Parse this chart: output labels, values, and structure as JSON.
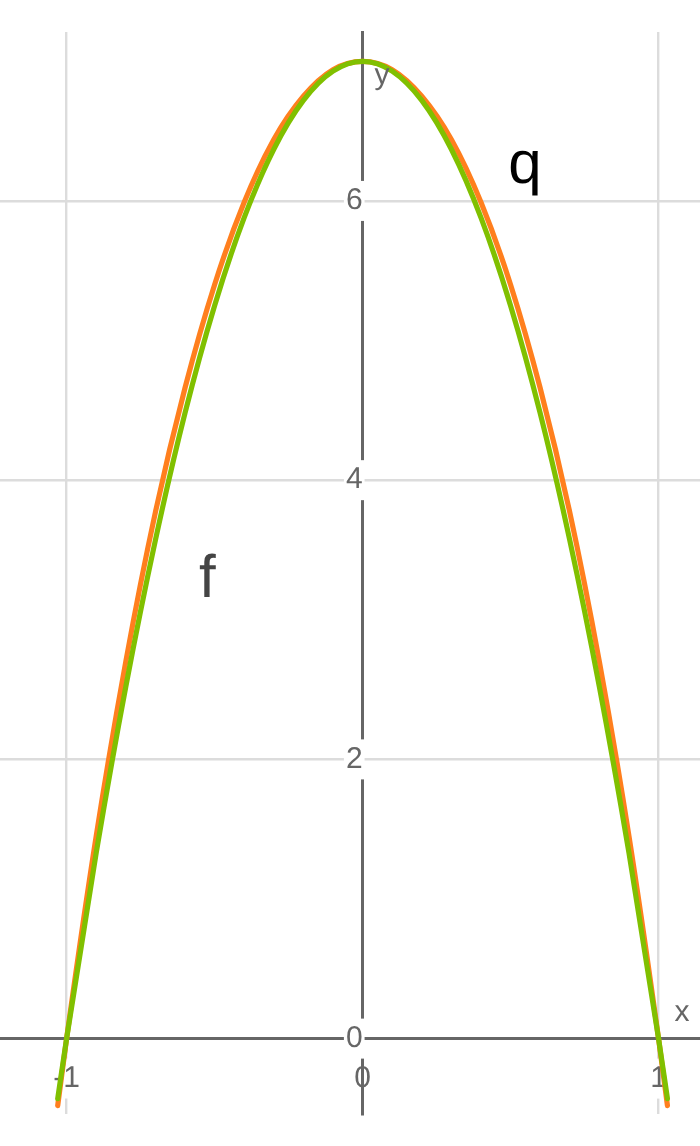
{
  "chart_data": {
    "type": "line",
    "xlabel": "x",
    "ylabel": "y",
    "x": [
      -1.03,
      -1,
      -0.9,
      -0.8,
      -0.7,
      -0.6,
      -0.5,
      -0.4,
      -0.3,
      -0.2,
      -0.1,
      0,
      0.1,
      0.2,
      0.3,
      0.4,
      0.5,
      0.6,
      0.7,
      0.8,
      0.9,
      1,
      1.03
    ],
    "series": [
      {
        "name": "f",
        "color": "#80c000",
        "values": [
          -0.43,
          0,
          1.33,
          2.52,
          3.57,
          4.48,
          5.25,
          5.88,
          6.37,
          6.72,
          6.93,
          7,
          6.93,
          6.72,
          6.37,
          5.88,
          5.25,
          4.48,
          3.57,
          2.52,
          1.33,
          0,
          -0.43
        ]
      },
      {
        "name": "q",
        "color": "#ff7f1e",
        "values": [
          -0.48,
          0,
          1.45,
          2.7,
          3.77,
          4.66,
          5.4,
          5.99,
          6.44,
          6.75,
          6.94,
          7,
          6.94,
          6.75,
          6.44,
          5.99,
          5.4,
          4.66,
          3.77,
          2.7,
          1.45,
          0,
          -0.48
        ]
      }
    ],
    "xlim": [
      -1.225,
      1.14
    ],
    "ylim": [
      -0.54,
      7.21
    ],
    "xticks": [
      -1,
      0,
      1
    ],
    "yticks": [
      0,
      2,
      4,
      6
    ],
    "grid": true,
    "legend": false,
    "marker": "none",
    "line_style": "solid"
  }
}
